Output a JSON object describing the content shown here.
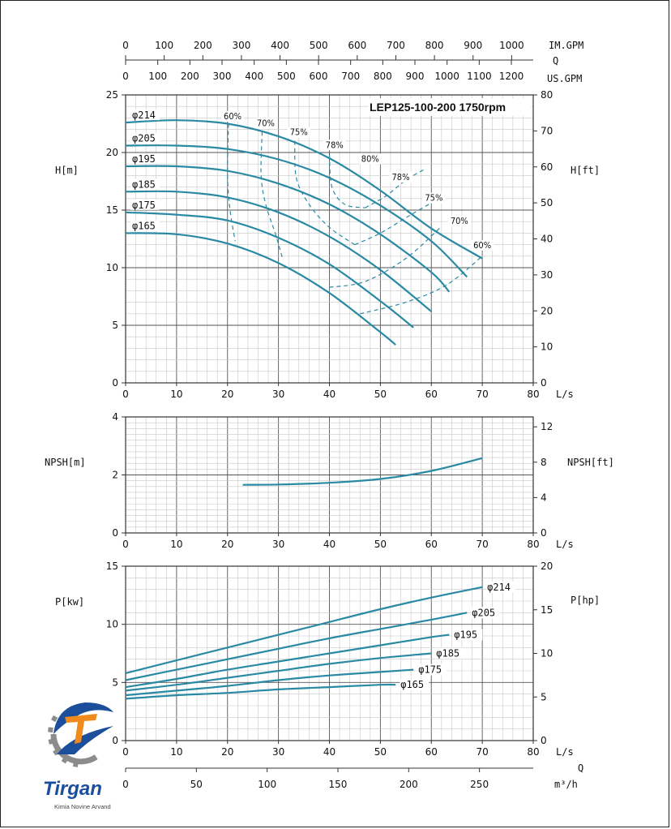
{
  "chart_data": [
    {
      "type": "line",
      "title": "LEP125-100-200 1750rpm",
      "xlabel": "L/s",
      "ylabel": "H[m]",
      "ylabel_right": "H[ft]",
      "xlim": [
        0,
        80
      ],
      "ylim": [
        0,
        25
      ],
      "ylim_right": [
        0,
        80
      ],
      "xticks": [
        "0",
        "10",
        "20",
        "30",
        "40",
        "50",
        "60",
        "70",
        "80"
      ],
      "yticks": [
        "0",
        "5",
        "10",
        "15",
        "20",
        "25"
      ],
      "yticks_right": [
        "0",
        "10",
        "20",
        "30",
        "40",
        "50",
        "60",
        "70",
        "80"
      ],
      "top_axes": [
        {
          "label": "IM.GPM",
          "ticks": [
            "0",
            "100",
            "200",
            "300",
            "400",
            "500",
            "600",
            "700",
            "800",
            "900",
            "1000"
          ]
        },
        {
          "label": "Q",
          "ticks": []
        },
        {
          "label": "US.GPM",
          "ticks": [
            "0",
            "100",
            "200",
            "300",
            "400",
            "500",
            "600",
            "700",
            "800",
            "900",
            "1000",
            "1100",
            "1200"
          ]
        }
      ],
      "grid": true,
      "series": [
        {
          "name": "φ214",
          "x": [
            0,
            10,
            20,
            30,
            40,
            50,
            60,
            70
          ],
          "y": [
            22.6,
            22.8,
            22.5,
            21.4,
            19.5,
            16.7,
            13.4,
            10.8
          ]
        },
        {
          "name": "φ205",
          "x": [
            0,
            10,
            20,
            30,
            40,
            50,
            60,
            67
          ],
          "y": [
            20.6,
            20.6,
            20.3,
            19.4,
            17.8,
            15.4,
            12.3,
            9.2
          ]
        },
        {
          "name": "φ195",
          "x": [
            0,
            10,
            20,
            30,
            40,
            50,
            60,
            63.5
          ],
          "y": [
            18.8,
            18.8,
            18.4,
            17.3,
            15.5,
            12.9,
            9.6,
            7.9
          ]
        },
        {
          "name": "φ185",
          "x": [
            0,
            10,
            20,
            30,
            40,
            50,
            60
          ],
          "y": [
            16.6,
            16.6,
            16.1,
            14.8,
            12.7,
            9.8,
            6.2
          ]
        },
        {
          "name": "φ175",
          "x": [
            0,
            10,
            20,
            30,
            40,
            50,
            56.5
          ],
          "y": [
            14.8,
            14.6,
            14.1,
            12.6,
            10.3,
            7.1,
            4.8
          ]
        },
        {
          "name": "φ165",
          "x": [
            0,
            10,
            20,
            30,
            40,
            50,
            53
          ],
          "y": [
            13.0,
            12.9,
            12.1,
            10.4,
            7.8,
            4.4,
            3.3
          ]
        }
      ],
      "efficiency_lines": [
        {
          "label": "60%",
          "x": [
            20.2,
            20.0,
            20.5,
            21.5
          ],
          "y": [
            22.5,
            18.0,
            15.0,
            12.3
          ]
        },
        {
          "label": "70%",
          "x": [
            26.8,
            26.6,
            27.5,
            29.5,
            30.8
          ],
          "y": [
            21.8,
            18.0,
            15.5,
            12.8,
            10.8
          ]
        },
        {
          "label": "75%",
          "x": [
            33.2,
            33.5,
            36,
            40,
            45
          ],
          "y": [
            21.0,
            17.8,
            15.5,
            13.5,
            12.0
          ]
        },
        {
          "label": "78%",
          "x": [
            40.0,
            40.5,
            43,
            47
          ],
          "y": [
            19.8,
            17.0,
            15.5,
            15.2
          ]
        },
        {
          "label": "78%",
          "x": [
            47,
            51,
            55,
            58.5
          ],
          "y": [
            15.2,
            16.2,
            17.6,
            18.5
          ]
        },
        {
          "label": "75%",
          "x": [
            45,
            50,
            56,
            61.5
          ],
          "y": [
            12.0,
            13.0,
            14.6,
            16.0
          ]
        },
        {
          "label": "70%",
          "x": [
            40,
            47,
            55,
            61.8
          ],
          "y": [
            8.3,
            8.8,
            10.8,
            13.5
          ]
        },
        {
          "label": "60%",
          "x": [
            46,
            55,
            63,
            70
          ],
          "y": [
            6.0,
            7.0,
            8.5,
            11.0
          ]
        }
      ],
      "efficiency_labels": [
        {
          "text": "60%",
          "x": 21,
          "y": 22.9
        },
        {
          "text": "70%",
          "x": 27.5,
          "y": 22.3
        },
        {
          "text": "75%",
          "x": 34,
          "y": 21.5
        },
        {
          "text": "78%",
          "x": 41,
          "y": 20.4
        },
        {
          "text": "80%",
          "x": 48,
          "y": 19.2
        },
        {
          "text": "78%",
          "x": 54,
          "y": 17.6
        },
        {
          "text": "75%",
          "x": 60.5,
          "y": 15.8
        },
        {
          "text": "70%",
          "x": 65.5,
          "y": 13.8
        },
        {
          "text": "60%",
          "x": 70,
          "y": 11.7
        }
      ]
    },
    {
      "type": "line",
      "title": "",
      "xlabel": "L/s",
      "ylabel": "NPSH[m]",
      "ylabel_right": "NPSH[ft]",
      "xlim": [
        0,
        80
      ],
      "ylim": [
        0,
        4
      ],
      "ylim_right": [
        0,
        13.12
      ],
      "xticks": [
        "0",
        "10",
        "20",
        "30",
        "40",
        "50",
        "60",
        "70",
        "80"
      ],
      "yticks": [
        "0",
        "2",
        "4"
      ],
      "yticks_right": [
        "0",
        "4",
        "8",
        "12"
      ],
      "grid": true,
      "series": [
        {
          "name": "",
          "x": [
            23,
            30,
            40,
            50,
            60,
            70
          ],
          "y": [
            1.66,
            1.67,
            1.73,
            1.86,
            2.14,
            2.58
          ]
        }
      ]
    },
    {
      "type": "line",
      "title": "",
      "xlabel": "L/s",
      "ylabel": "P[kw]",
      "ylabel_right": "P[hp]",
      "xlim": [
        0,
        80
      ],
      "ylim": [
        0,
        15
      ],
      "ylim_right": [
        0,
        20
      ],
      "xticks": [
        "0",
        "10",
        "20",
        "30",
        "40",
        "50",
        "60",
        "70",
        "80"
      ],
      "yticks": [
        "0",
        "5",
        "10",
        "15"
      ],
      "yticks_right": [
        "0",
        "5",
        "10",
        "15",
        "20"
      ],
      "bottom_axis": {
        "label": "Q",
        "unit": "m³/h",
        "ticks": [
          "0",
          "50",
          "100",
          "150",
          "200",
          "250"
        ]
      },
      "grid": true,
      "series": [
        {
          "name": "φ214",
          "x": [
            0,
            10,
            20,
            30,
            40,
            50,
            60,
            70
          ],
          "y": [
            5.8,
            6.9,
            8.0,
            9.1,
            10.2,
            11.3,
            12.3,
            13.2
          ]
        },
        {
          "name": "φ205",
          "x": [
            0,
            10,
            20,
            30,
            40,
            50,
            60,
            67
          ],
          "y": [
            5.2,
            6.1,
            7.0,
            7.9,
            8.8,
            9.6,
            10.4,
            11.0
          ]
        },
        {
          "name": "φ195",
          "x": [
            0,
            10,
            20,
            30,
            40,
            50,
            60,
            63.5
          ],
          "y": [
            4.6,
            5.3,
            6.1,
            6.8,
            7.5,
            8.2,
            8.9,
            9.1
          ]
        },
        {
          "name": "φ185",
          "x": [
            0,
            10,
            20,
            30,
            40,
            50,
            60
          ],
          "y": [
            4.3,
            4.8,
            5.4,
            6.0,
            6.6,
            7.1,
            7.5
          ]
        },
        {
          "name": "φ175",
          "x": [
            0,
            10,
            20,
            30,
            40,
            50,
            56.5
          ],
          "y": [
            3.9,
            4.3,
            4.7,
            5.2,
            5.6,
            5.9,
            6.1
          ]
        },
        {
          "name": "φ165",
          "x": [
            0,
            10,
            20,
            30,
            40,
            50,
            53
          ],
          "y": [
            3.6,
            3.9,
            4.1,
            4.4,
            4.6,
            4.8,
            4.8
          ]
        }
      ]
    }
  ],
  "logo": {
    "brand": "Tirgan",
    "tagline": "Kimia Novine Arvand",
    "colors": {
      "blue": "#1b4f9c",
      "orange": "#f08a1c",
      "gray": "#8c8c8c"
    }
  },
  "colors": {
    "curve": "#2a8aa3",
    "dashed": "#2a8aa3",
    "grid": "#c8c8c8",
    "axis": "#333333"
  }
}
